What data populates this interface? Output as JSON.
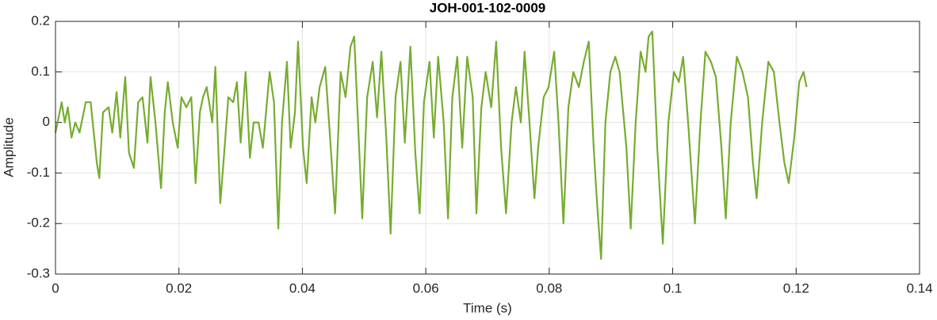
{
  "chart_data": {
    "type": "line",
    "title": "JOH-001-102-0009",
    "xlabel": "Time (s)",
    "ylabel": "Amplitude",
    "color": "#77ac30",
    "grid": true,
    "xlim": [
      0,
      0.14
    ],
    "xticks": [
      0,
      0.02,
      0.04,
      0.06,
      0.08,
      0.1,
      0.12,
      0.14
    ],
    "ylim": [
      -0.3,
      0.2
    ],
    "yticks": [
      -0.3,
      -0.2,
      -0.1,
      0,
      0.1,
      0.2
    ],
    "x": [
      0,
      0.001,
      0.0015,
      0.002,
      0.0026,
      0.0032,
      0.0039,
      0.0049,
      0.0057,
      0.0067,
      0.0071,
      0.0077,
      0.0086,
      0.0092,
      0.0099,
      0.0105,
      0.0113,
      0.0119,
      0.0127,
      0.0134,
      0.0141,
      0.0149,
      0.0154,
      0.0162,
      0.0171,
      0.0177,
      0.0182,
      0.019,
      0.0198,
      0.0204,
      0.0212,
      0.022,
      0.0227,
      0.0234,
      0.0239,
      0.0245,
      0.0254,
      0.0259,
      0.0267,
      0.0274,
      0.028,
      0.0288,
      0.0294,
      0.03,
      0.0308,
      0.0315,
      0.0321,
      0.0329,
      0.0336,
      0.0347,
      0.0354,
      0.0361,
      0.0367,
      0.0375,
      0.0381,
      0.0388,
      0.0393,
      0.0401,
      0.0407,
      0.0415,
      0.0421,
      0.0428,
      0.0437,
      0.0446,
      0.0453,
      0.0462,
      0.047,
      0.0478,
      0.0484,
      0.0492,
      0.0497,
      0.0505,
      0.0514,
      0.0521,
      0.0528,
      0.0536,
      0.0543,
      0.0551,
      0.0559,
      0.0566,
      0.0575,
      0.0583,
      0.059,
      0.0597,
      0.0606,
      0.0613,
      0.062,
      0.0629,
      0.0636,
      0.0643,
      0.0651,
      0.0659,
      0.0667,
      0.0676,
      0.0682,
      0.069,
      0.0697,
      0.0706,
      0.0714,
      0.0722,
      0.073,
      0.0739,
      0.0746,
      0.0754,
      0.076,
      0.0768,
      0.0776,
      0.0782,
      0.0791,
      0.0799,
      0.0808,
      0.0815,
      0.0823,
      0.0831,
      0.0839,
      0.0848,
      0.0856,
      0.0864,
      0.0872,
      0.0878,
      0.0884,
      0.0891,
      0.0899,
      0.0907,
      0.0914,
      0.0925,
      0.0932,
      0.094,
      0.0948,
      0.0956,
      0.0961,
      0.0967,
      0.0975,
      0.0984,
      0.0993,
      0.1002,
      0.101,
      0.1017,
      0.1025,
      0.1036,
      0.1045,
      0.1053,
      0.1062,
      0.107,
      0.1079,
      0.1086,
      0.1094,
      0.1104,
      0.1113,
      0.1122,
      0.113,
      0.1136,
      0.1145,
      0.1155,
      0.1164,
      0.1173,
      0.1181,
      0.1188,
      0.1197,
      0.1205,
      0.1212,
      0.1217
    ],
    "values": [
      -0.02,
      0.04,
      0,
      0.03,
      -0.03,
      0,
      -0.02,
      0.04,
      0.04,
      -0.08,
      -0.11,
      0.02,
      0.03,
      -0.02,
      0.06,
      -0.03,
      0.09,
      -0.06,
      -0.09,
      0.04,
      0.05,
      -0.04,
      0.09,
      0,
      -0.13,
      0.02,
      0.08,
      0,
      -0.05,
      0.05,
      0.03,
      0.05,
      -0.12,
      0.02,
      0.05,
      0.07,
      0,
      0.11,
      -0.16,
      -0.05,
      0.05,
      0.04,
      0.08,
      -0.04,
      0.1,
      -0.07,
      0,
      0,
      -0.05,
      0.1,
      0.04,
      -0.21,
      0,
      0.12,
      -0.05,
      0.02,
      0.16,
      -0.05,
      -0.12,
      0.05,
      0,
      0.07,
      0.11,
      -0.05,
      -0.18,
      0.1,
      0.05,
      0.15,
      0.17,
      -0.05,
      -0.19,
      0.05,
      0.12,
      0.01,
      0.14,
      -0.03,
      -0.22,
      0.05,
      0.12,
      -0.04,
      0.15,
      -0.06,
      -0.18,
      0.04,
      0.12,
      -0.03,
      0.13,
      0,
      -0.19,
      0.05,
      0.13,
      -0.05,
      0.13,
      0.05,
      -0.18,
      0.03,
      0.1,
      0.03,
      0.16,
      -0.05,
      -0.18,
      0,
      0.07,
      0,
      0.14,
      0,
      -0.15,
      -0.05,
      0.05,
      0.07,
      0.14,
      0,
      -0.2,
      0.03,
      0.1,
      0.07,
      0.12,
      0.16,
      -0.05,
      -0.17,
      -0.27,
      0,
      0.1,
      0.13,
      0.1,
      -0.05,
      -0.21,
      0,
      0.14,
      0.1,
      0.17,
      0.18,
      -0.05,
      -0.24,
      0,
      0.1,
      0.08,
      0.13,
      0,
      -0.2,
      0,
      0.14,
      0.12,
      0.09,
      -0.05,
      -0.19,
      0,
      0.13,
      0.1,
      0.05,
      -0.08,
      -0.15,
      0,
      0.12,
      0.1,
      0,
      -0.08,
      -0.12,
      -0.03,
      0.08,
      0.1,
      0.07
    ]
  }
}
